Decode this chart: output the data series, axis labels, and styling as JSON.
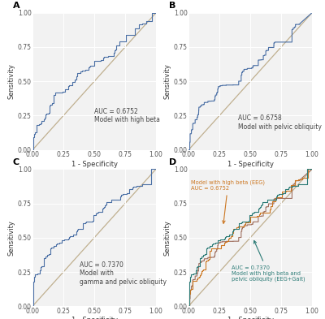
{
  "panel_labels": [
    "A",
    "B",
    "C",
    "D"
  ],
  "auc_A": 0.6752,
  "auc_B": 0.6758,
  "auc_C": 0.737,
  "auc_D_eeg": 0.6752,
  "auc_D_combined": 0.737,
  "label_A_line1": "AUC = 0.6752",
  "label_A_line2": "Model with high beta",
  "label_B_line1": "AUC = 0.6758",
  "label_B_line2": "Model with pelvic obliquity",
  "label_C_line1": "AUC = 0.7370",
  "label_C_line2": "Model with",
  "label_C_line3": "gamma and pelvic obliquity",
  "color_roc": "#4a6fa5",
  "color_diag": "#c0b090",
  "color_eeg": "#cc7722",
  "color_gait": "#a07060",
  "color_combined": "#2a7a75",
  "background": "#f2f2f2",
  "tick_fontsize": 5.5,
  "axis_label_fontsize": 6,
  "annotation_fontsize": 5.5,
  "panel_label_fontsize": 8
}
